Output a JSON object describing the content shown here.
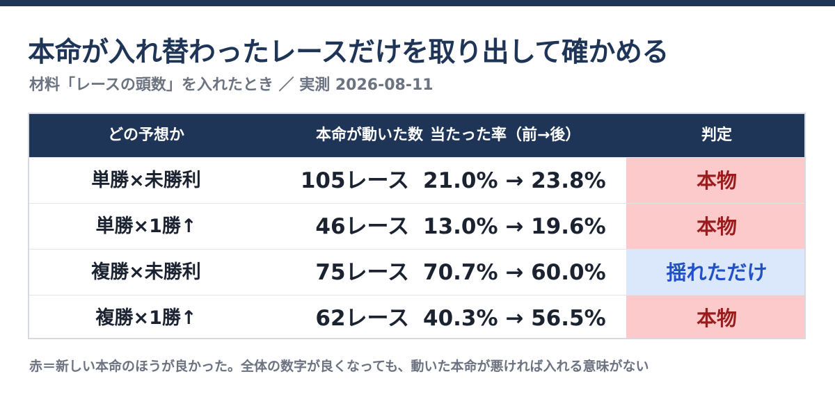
{
  "title": "本命が入れ替わったレースだけを取り出して確かめる",
  "subtitle": "材料「レースの頭数」を入れたとき ／ 実測 2026-08-11",
  "table": {
    "headers": {
      "model": "どの予想か",
      "count": "本命が動いた数",
      "rate": "当たった率（前→後）",
      "verdict": "判定"
    },
    "rows": [
      {
        "model": "単勝×未勝利",
        "count": "105レース",
        "rate": "21.0% → 23.8%",
        "verdict": "本物",
        "verdict_type": "real"
      },
      {
        "model": "単勝×1勝↑",
        "count": "46レース",
        "rate": "13.0% → 19.6%",
        "verdict": "本物",
        "verdict_type": "real"
      },
      {
        "model": "複勝×未勝利",
        "count": "75レース",
        "rate": "70.7% → 60.0%",
        "verdict": "揺れただけ",
        "verdict_type": "noise"
      },
      {
        "model": "複勝×1勝↑",
        "count": "62レース",
        "rate": "40.3% → 56.5%",
        "verdict": "本物",
        "verdict_type": "real"
      }
    ]
  },
  "footnote": "赤＝新しい本命のほうが良かった。全体の数字が良くなっても、動いた本命が悪ければ入れる意味がない",
  "colors": {
    "header_bg": "#1f3557",
    "real_bg": "#fccacb",
    "real_text": "#9a1d1d",
    "noise_bg": "#dbe8fb",
    "noise_text": "#2150c7"
  }
}
